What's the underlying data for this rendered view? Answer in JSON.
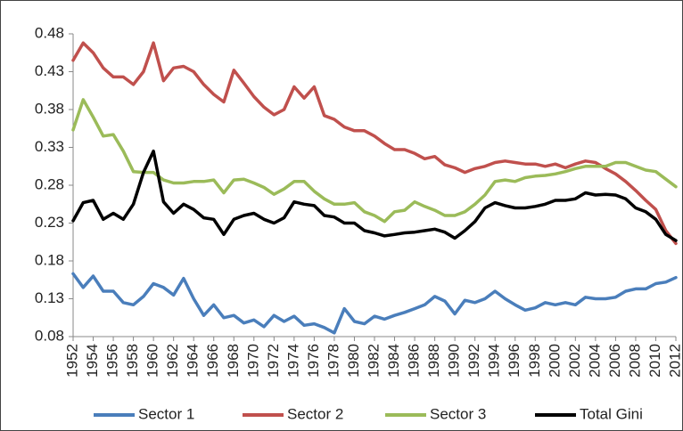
{
  "chart_data": {
    "type": "line",
    "x": [
      1952,
      1953,
      1954,
      1955,
      1956,
      1957,
      1958,
      1959,
      1960,
      1961,
      1962,
      1963,
      1964,
      1965,
      1966,
      1967,
      1968,
      1969,
      1970,
      1971,
      1972,
      1973,
      1974,
      1975,
      1976,
      1977,
      1978,
      1979,
      1980,
      1981,
      1982,
      1983,
      1984,
      1985,
      1986,
      1987,
      1988,
      1989,
      1990,
      1991,
      1992,
      1993,
      1994,
      1995,
      1996,
      1997,
      1998,
      1999,
      2000,
      2001,
      2002,
      2003,
      2004,
      2005,
      2006,
      2007,
      2008,
      2009,
      2010,
      2011,
      2012
    ],
    "series": [
      {
        "name": "Sector 1",
        "color": "#4a7ebb",
        "values": [
          0.163,
          0.145,
          0.16,
          0.14,
          0.14,
          0.125,
          0.122,
          0.133,
          0.15,
          0.145,
          0.135,
          0.157,
          0.13,
          0.108,
          0.122,
          0.105,
          0.108,
          0.098,
          0.102,
          0.093,
          0.108,
          0.1,
          0.107,
          0.095,
          0.097,
          0.092,
          0.085,
          0.117,
          0.1,
          0.097,
          0.107,
          0.103,
          0.108,
          0.112,
          0.117,
          0.122,
          0.133,
          0.127,
          0.11,
          0.128,
          0.125,
          0.13,
          0.14,
          0.13,
          0.122,
          0.115,
          0.118,
          0.125,
          0.122,
          0.125,
          0.122,
          0.132,
          0.13,
          0.13,
          0.132,
          0.14,
          0.143,
          0.143,
          0.15,
          0.152,
          0.158
        ]
      },
      {
        "name": "Sector 2",
        "color": "#c0504d",
        "values": [
          0.445,
          0.468,
          0.455,
          0.435,
          0.423,
          0.423,
          0.413,
          0.43,
          0.468,
          0.418,
          0.435,
          0.437,
          0.43,
          0.413,
          0.4,
          0.39,
          0.432,
          0.415,
          0.397,
          0.383,
          0.373,
          0.38,
          0.41,
          0.395,
          0.41,
          0.372,
          0.367,
          0.357,
          0.352,
          0.352,
          0.345,
          0.335,
          0.327,
          0.327,
          0.322,
          0.315,
          0.318,
          0.307,
          0.303,
          0.297,
          0.302,
          0.305,
          0.31,
          0.312,
          0.31,
          0.308,
          0.308,
          0.305,
          0.308,
          0.303,
          0.308,
          0.312,
          0.31,
          0.302,
          0.295,
          0.285,
          0.273,
          0.26,
          0.248,
          0.22,
          0.203
        ]
      },
      {
        "name": "Sector 3",
        "color": "#9bbb59",
        "values": [
          0.353,
          0.393,
          0.37,
          0.345,
          0.347,
          0.325,
          0.298,
          0.297,
          0.297,
          0.287,
          0.283,
          0.283,
          0.285,
          0.285,
          0.287,
          0.27,
          0.287,
          0.288,
          0.283,
          0.277,
          0.268,
          0.275,
          0.285,
          0.285,
          0.272,
          0.262,
          0.255,
          0.255,
          0.257,
          0.245,
          0.24,
          0.232,
          0.245,
          0.247,
          0.258,
          0.252,
          0.247,
          0.24,
          0.24,
          0.245,
          0.255,
          0.267,
          0.285,
          0.287,
          0.285,
          0.29,
          0.292,
          0.293,
          0.295,
          0.298,
          0.302,
          0.305,
          0.305,
          0.305,
          0.31,
          0.31,
          0.305,
          0.3,
          0.298,
          0.288,
          0.278
        ]
      },
      {
        "name": "Total Gini",
        "color": "#000000",
        "values": [
          0.233,
          0.257,
          0.26,
          0.235,
          0.243,
          0.235,
          0.255,
          0.297,
          0.325,
          0.258,
          0.243,
          0.255,
          0.248,
          0.237,
          0.235,
          0.215,
          0.235,
          0.24,
          0.243,
          0.235,
          0.23,
          0.237,
          0.258,
          0.255,
          0.253,
          0.24,
          0.238,
          0.23,
          0.23,
          0.22,
          0.217,
          0.213,
          0.215,
          0.217,
          0.218,
          0.22,
          0.222,
          0.218,
          0.21,
          0.22,
          0.232,
          0.25,
          0.257,
          0.253,
          0.25,
          0.25,
          0.252,
          0.255,
          0.26,
          0.26,
          0.262,
          0.27,
          0.267,
          0.268,
          0.267,
          0.262,
          0.25,
          0.245,
          0.235,
          0.215,
          0.207
        ]
      }
    ],
    "xlim": [
      1952,
      2012
    ],
    "xticks": [
      1952,
      1954,
      1956,
      1958,
      1960,
      1962,
      1964,
      1966,
      1968,
      1970,
      1972,
      1974,
      1976,
      1978,
      1980,
      1982,
      1984,
      1986,
      1988,
      1990,
      1992,
      1994,
      1996,
      1998,
      2000,
      2002,
      2004,
      2006,
      2008,
      2010,
      2012
    ],
    "ylim": [
      0.08,
      0.48
    ],
    "yticks": [
      0.08,
      0.13,
      0.18,
      0.23,
      0.28,
      0.33,
      0.38,
      0.43,
      0.48
    ],
    "grid": false,
    "legend": "bottom"
  }
}
